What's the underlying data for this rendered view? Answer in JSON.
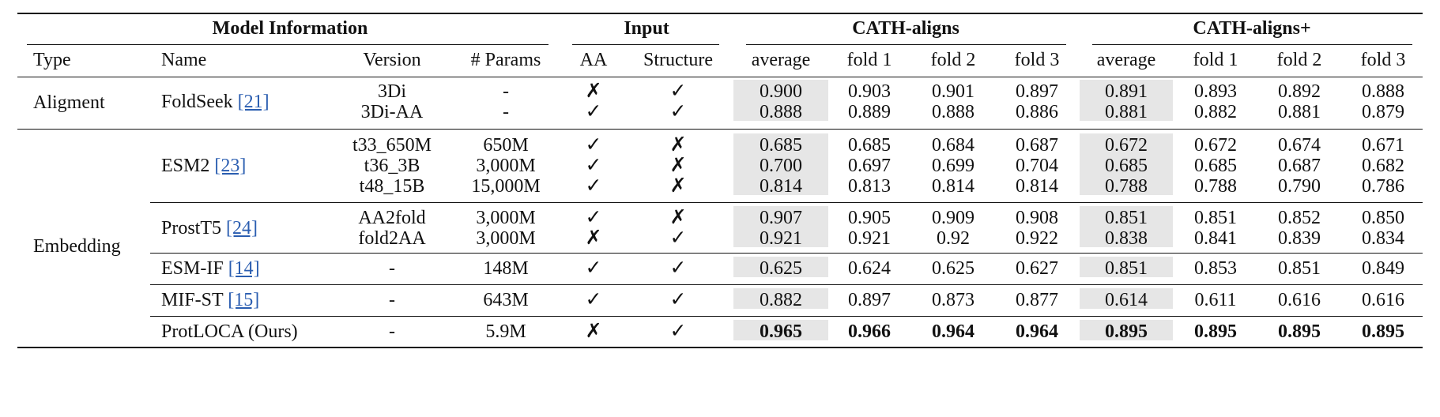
{
  "group_headers": [
    "Model Information",
    "Input",
    "CATH-aligns",
    "CATH-aligns+"
  ],
  "column_headers": [
    "Type",
    "Name",
    "Version",
    "# Params",
    "AA",
    "Structure",
    "average",
    "fold 1",
    "fold 2",
    "fold 3",
    "average",
    "fold 1",
    "fold 2",
    "fold 3"
  ],
  "types": [
    "Aligment",
    "Embedding"
  ],
  "models": [
    {
      "name": "FoldSeek",
      "ref": "[21]"
    },
    {
      "name": "ESM2",
      "ref": "[23]"
    },
    {
      "name": "ProstT5",
      "ref": "[24]"
    },
    {
      "name": "ESM-IF",
      "ref": "[14]"
    },
    {
      "name": "MIF-ST",
      "ref": "[15]"
    },
    {
      "name": "ProtLOCA (Ours)",
      "ref": ""
    }
  ],
  "rows": [
    {
      "version": "3Di",
      "params": "-",
      "aa": "✗",
      "structure": "✓",
      "cath": [
        "0.900",
        "0.903",
        "0.901",
        "0.897"
      ],
      "cathp": [
        "0.891",
        "0.893",
        "0.892",
        "0.888"
      ]
    },
    {
      "version": "3Di-AA",
      "params": "-",
      "aa": "✓",
      "structure": "✓",
      "cath": [
        "0.888",
        "0.889",
        "0.888",
        "0.886"
      ],
      "cathp": [
        "0.881",
        "0.882",
        "0.881",
        "0.879"
      ]
    },
    {
      "version": "t33_650M",
      "params": "650M",
      "aa": "✓",
      "structure": "✗",
      "cath": [
        "0.685",
        "0.685",
        "0.684",
        "0.687"
      ],
      "cathp": [
        "0.672",
        "0.672",
        "0.674",
        "0.671"
      ]
    },
    {
      "version": "t36_3B",
      "params": "3,000M",
      "aa": "✓",
      "structure": "✗",
      "cath": [
        "0.700",
        "0.697",
        "0.699",
        "0.704"
      ],
      "cathp": [
        "0.685",
        "0.685",
        "0.687",
        "0.682"
      ]
    },
    {
      "version": "t48_15B",
      "params": "15,000M",
      "aa": "✓",
      "structure": "✗",
      "cath": [
        "0.814",
        "0.813",
        "0.814",
        "0.814"
      ],
      "cathp": [
        "0.788",
        "0.788",
        "0.790",
        "0.786"
      ]
    },
    {
      "version": "AA2fold",
      "params": "3,000M",
      "aa": "✓",
      "structure": "✗",
      "cath": [
        "0.907",
        "0.905",
        "0.909",
        "0.908"
      ],
      "cathp": [
        "0.851",
        "0.851",
        "0.852",
        "0.850"
      ]
    },
    {
      "version": "fold2AA",
      "params": "3,000M",
      "aa": "✗",
      "structure": "✓",
      "cath": [
        "0.921",
        "0.921",
        "0.92",
        "0.922"
      ],
      "cathp": [
        "0.838",
        "0.841",
        "0.839",
        "0.834"
      ]
    },
    {
      "version": "-",
      "params": "148M",
      "aa": "✓",
      "structure": "✓",
      "cath": [
        "0.625",
        "0.624",
        "0.625",
        "0.627"
      ],
      "cathp": [
        "0.851",
        "0.853",
        "0.851",
        "0.849"
      ]
    },
    {
      "version": "-",
      "params": "643M",
      "aa": "✓",
      "structure": "✓",
      "cath": [
        "0.882",
        "0.897",
        "0.873",
        "0.877"
      ],
      "cathp": [
        "0.614",
        "0.611",
        "0.616",
        "0.616"
      ]
    },
    {
      "version": "-",
      "params": "5.9M",
      "aa": "✗",
      "structure": "✓",
      "cath": [
        "0.965",
        "0.966",
        "0.964",
        "0.964"
      ],
      "cathp": [
        "0.895",
        "0.895",
        "0.895",
        "0.895"
      ]
    }
  ]
}
